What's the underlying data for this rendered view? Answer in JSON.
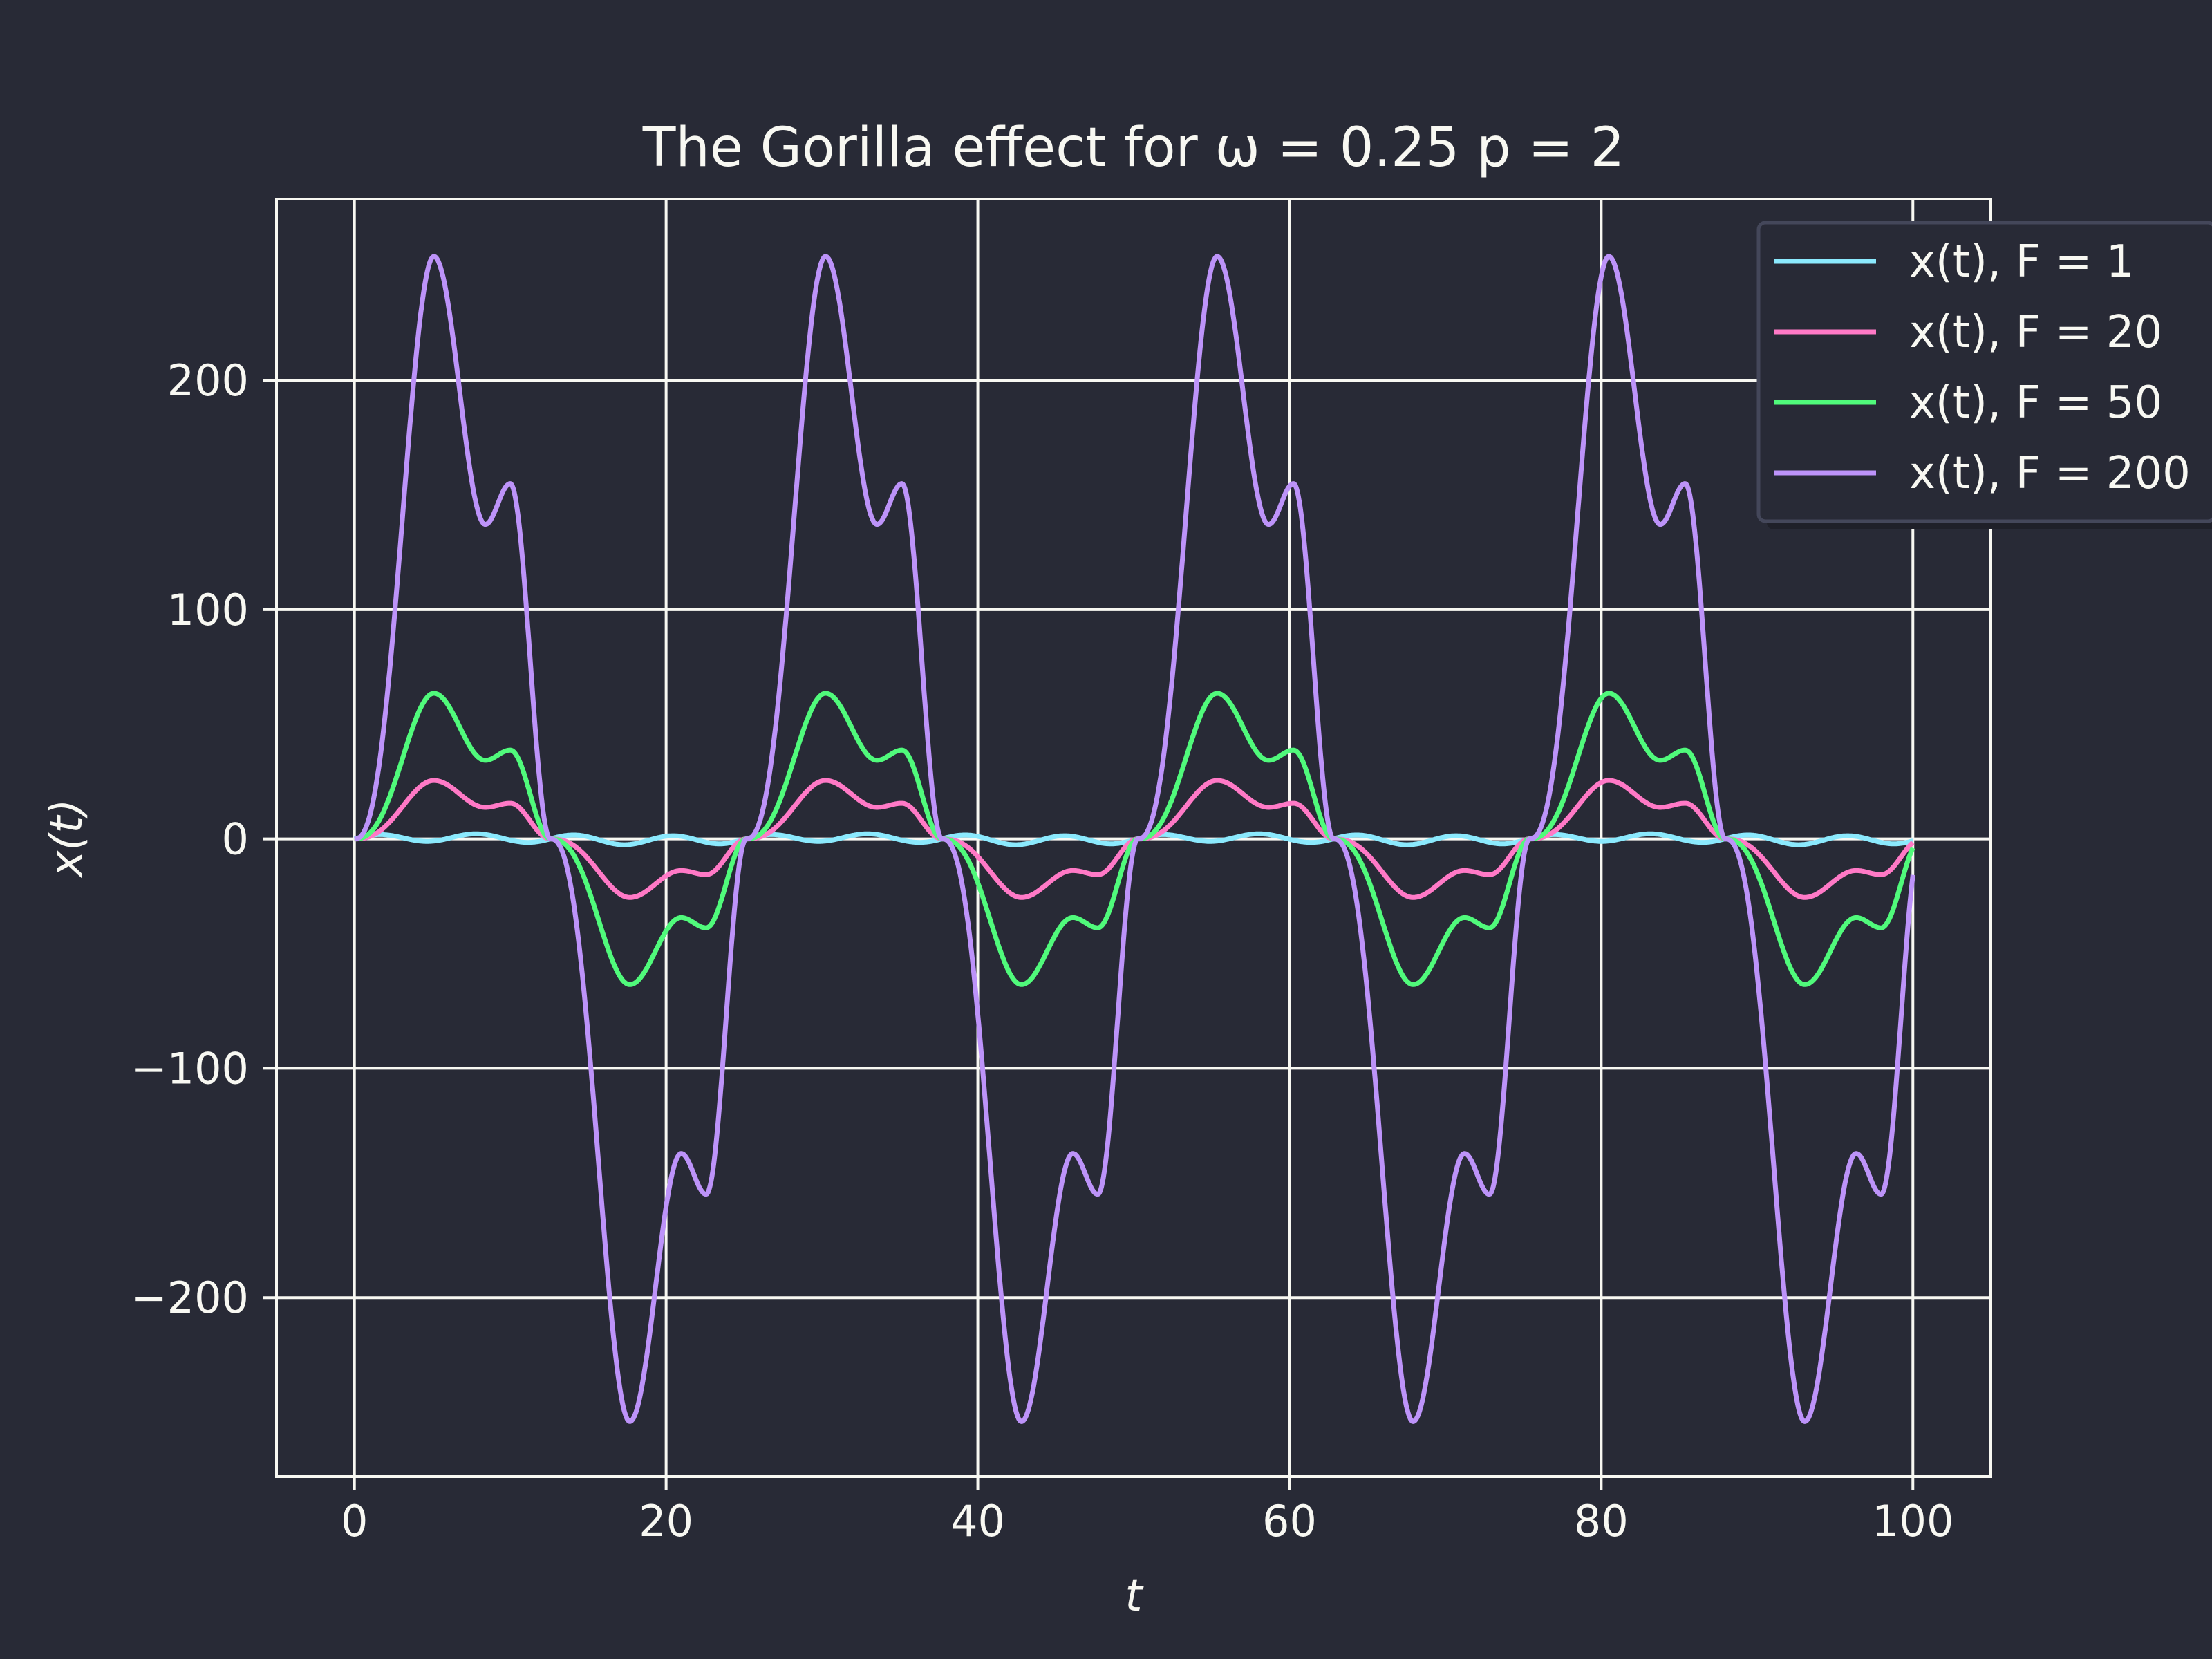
{
  "chart_data": {
    "type": "line",
    "title": "The Gorilla effect for ω = 0.25 p = 2",
    "xlabel": "t",
    "ylabel": "x(t)",
    "xlim": [
      -5,
      105
    ],
    "ylim": [
      -278,
      279
    ],
    "x_ticks": [
      0,
      20,
      40,
      60,
      80,
      100
    ],
    "x_tick_labels": [
      "0",
      "20",
      "40",
      "60",
      "80",
      "100"
    ],
    "y_ticks": [
      -200,
      -100,
      0,
      100,
      200
    ],
    "y_tick_labels": [
      "−200",
      "−100",
      "0",
      "100",
      "200"
    ],
    "grid": true,
    "legend_position": "top-right",
    "period": 25.13,
    "key_points": {
      "t": [
        0,
        5.1,
        8.4,
        10.0,
        12.57
      ],
      "shape_fraction": [
        0,
        1.0,
        0.54,
        0.61,
        0
      ]
    },
    "series": [
      {
        "name": "x(t), F = 1",
        "F": 1,
        "color": "#8be9fd",
        "peak": 2.5,
        "ripple": 1.8
      },
      {
        "name": "x(t), F = 20",
        "F": 20,
        "color": "#ff79c6",
        "peak": 25.5,
        "ripple": 0
      },
      {
        "name": "x(t), F = 50",
        "F": 50,
        "color": "#50fa7b",
        "peak": 63.5,
        "ripple": 0
      },
      {
        "name": "x(t), F = 200",
        "F": 200,
        "color": "#bd93f9",
        "peak": 254,
        "ripple": 0
      }
    ],
    "background": "#282a36",
    "foreground": "#f8f8f2"
  }
}
